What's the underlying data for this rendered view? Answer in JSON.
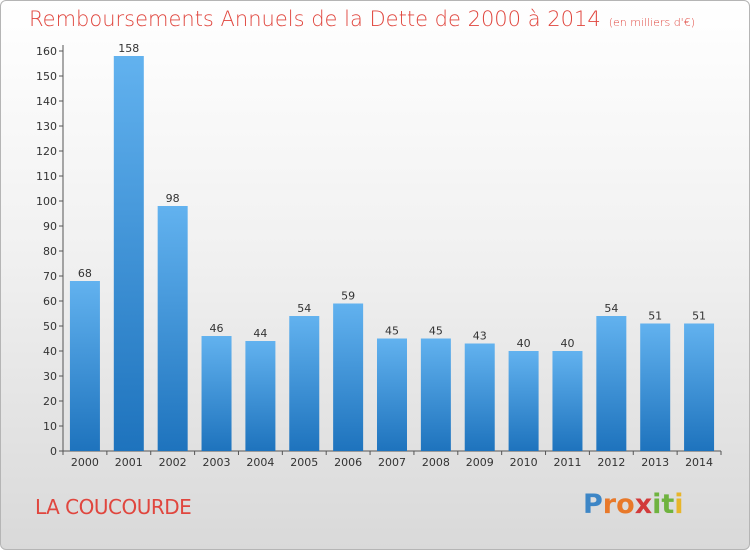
{
  "chart_data": {
    "type": "bar",
    "title": "Remboursements Annuels de la Dette de 2000 à 2014",
    "subtitle": "(en milliers d'€)",
    "categories": [
      "2000",
      "2001",
      "2002",
      "2003",
      "2004",
      "2005",
      "2006",
      "2007",
      "2008",
      "2009",
      "2010",
      "2011",
      "2012",
      "2013",
      "2014"
    ],
    "values": [
      68,
      158,
      98,
      46,
      44,
      54,
      59,
      45,
      45,
      43,
      40,
      40,
      54,
      51,
      51
    ],
    "ylim": [
      0,
      160
    ],
    "yticks": [
      0,
      10,
      20,
      30,
      40,
      50,
      60,
      70,
      80,
      90,
      100,
      110,
      120,
      130,
      140,
      150,
      160
    ],
    "grid": false,
    "bar_color": "#3b8fd6"
  },
  "commune": "LA COUCOURDE",
  "logo": {
    "letters": [
      "P",
      "r",
      "o",
      "x",
      "i",
      "t",
      "i"
    ],
    "colors": [
      "#3d86c6",
      "#e8792a",
      "#e8792a",
      "#d23a3a",
      "#6fb33f",
      "#6fb33f",
      "#e8b52a"
    ]
  }
}
